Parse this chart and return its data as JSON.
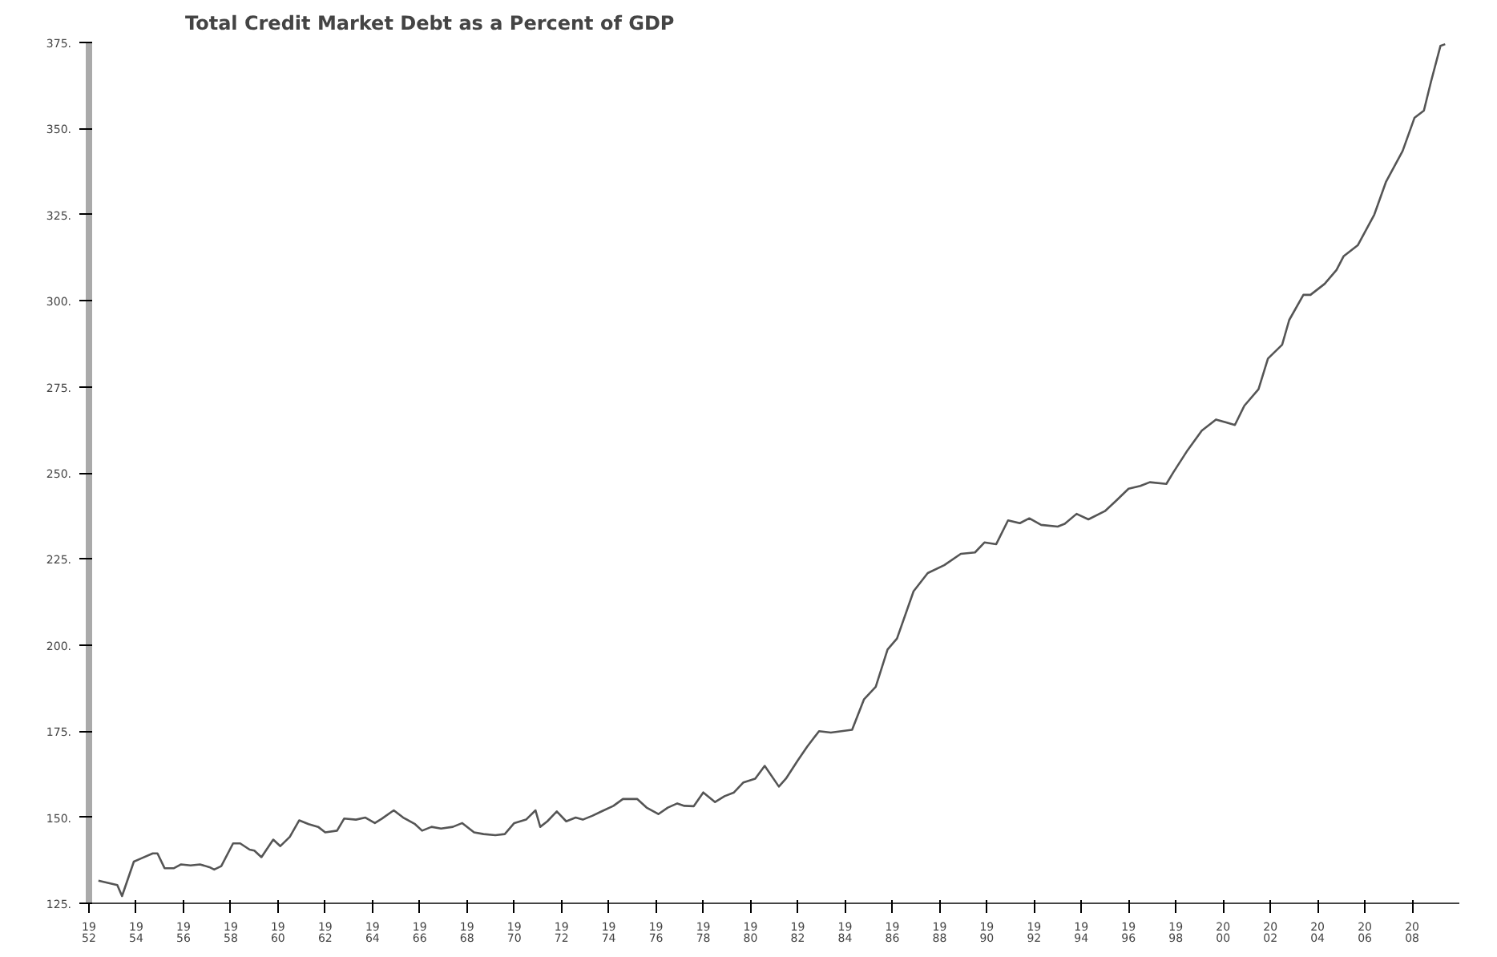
{
  "chart_data": {
    "type": "line",
    "title": "Total Credit Market Debt as a Percent of GDP",
    "x": [
      1952.4,
      1953.2,
      1953.4,
      1953.9,
      1954.2,
      1954.7,
      1954.9,
      1955.2,
      1955.6,
      1955.9,
      1956.3,
      1956.7,
      1957.1,
      1957.3,
      1957.6,
      1958.1,
      1958.4,
      1958.8,
      1959.0,
      1959.3,
      1959.8,
      1960.1,
      1960.5,
      1960.9,
      1961.3,
      1961.7,
      1962.0,
      1962.5,
      1962.8,
      1963.3,
      1963.7,
      1964.1,
      1964.4,
      1964.9,
      1965.3,
      1965.8,
      1966.1,
      1966.5,
      1966.9,
      1967.4,
      1967.8,
      1968.3,
      1968.7,
      1969.2,
      1969.6,
      1970.0,
      1970.5,
      1970.9,
      1971.1,
      1971.4,
      1971.8,
      1972.2,
      1972.6,
      1972.9,
      1973.3,
      1973.7,
      1974.2,
      1974.6,
      1975.2,
      1975.6,
      1976.1,
      1976.5,
      1976.9,
      1977.2,
      1977.6,
      1978.0,
      1978.5,
      1978.9,
      1979.3,
      1979.7,
      1980.2,
      1980.6,
      1981.2,
      1981.5,
      1982.0,
      1982.4,
      1982.9,
      1983.4,
      1984.3,
      1984.8,
      1985.3,
      1985.8,
      1986.2,
      1986.9,
      1987.5,
      1988.2,
      1988.9,
      1989.5,
      1989.9,
      1990.4,
      1990.9,
      1991.4,
      1991.8,
      1992.3,
      1993.0,
      1993.3,
      1993.8,
      1994.3,
      1995.0,
      1995.5,
      1996.0,
      1996.5,
      1996.9,
      1997.6,
      1997.9,
      1998.2,
      1998.5,
      1999.1,
      1999.7,
      2000.1,
      2000.5,
      2000.9,
      2001.5,
      2001.9,
      2002.5,
      2002.8,
      2003.4,
      2003.7,
      2004.3,
      2004.8,
      2005.1,
      2005.7,
      2006.4,
      2006.9,
      2007.6,
      2008.1,
      2008.5,
      2008.8,
      2009.2,
      2009.4
    ],
    "series": [
      {
        "color": "#555555",
        "values": [
          131.6,
          130.3,
          127.1,
          137.1,
          138.0,
          139.5,
          139.5,
          135.2,
          135.2,
          136.3,
          136.0,
          136.3,
          135.5,
          134.8,
          135.8,
          142.4,
          142.4,
          140.6,
          140.3,
          138.4,
          143.5,
          141.6,
          144.3,
          149.1,
          148.0,
          147.2,
          145.6,
          146.1,
          149.6,
          149.3,
          149.9,
          148.3,
          149.6,
          152.0,
          149.9,
          148.0,
          146.1,
          147.2,
          146.7,
          147.2,
          148.3,
          145.6,
          145.1,
          144.8,
          145.1,
          148.3,
          149.3,
          152.0,
          147.2,
          148.8,
          151.7,
          148.8,
          149.9,
          149.3,
          150.4,
          151.7,
          153.3,
          155.3,
          155.3,
          152.8,
          150.9,
          152.8,
          154.0,
          153.3,
          153.2,
          157.2,
          154.4,
          156.1,
          157.2,
          160.1,
          161.2,
          164.9,
          158.9,
          161.2,
          166.5,
          170.5,
          175.0,
          174.6,
          175.4,
          184.2,
          187.9,
          198.7,
          201.9,
          215.6,
          220.9,
          223.2,
          226.5,
          226.9,
          229.8,
          229.3,
          236.2,
          235.4,
          236.8,
          234.9,
          234.4,
          235.2,
          238.1,
          236.5,
          238.9,
          242.1,
          245.4,
          246.2,
          247.3,
          246.8,
          250.2,
          253.4,
          256.6,
          262.3,
          265.5,
          264.7,
          263.9,
          269.5,
          274.3,
          283.2,
          287.2,
          294.4,
          301.7,
          301.7,
          304.9,
          308.9,
          312.9,
          316.1,
          325.0,
          334.6,
          343.5,
          353.1,
          355.2,
          363.6,
          374.0,
          374.5
        ]
      }
    ],
    "xlim": [
      1952,
      2010
    ],
    "ylim": [
      125,
      375
    ],
    "xticks": [
      1952,
      1954,
      1956,
      1958,
      1960,
      1962,
      1964,
      1966,
      1968,
      1970,
      1972,
      1974,
      1976,
      1978,
      1980,
      1982,
      1984,
      1986,
      1988,
      1990,
      1992,
      1994,
      1996,
      1998,
      2000,
      2002,
      2004,
      2006,
      2008
    ],
    "yticks": [
      {
        "value": 125,
        "label": "125."
      },
      {
        "value": 150,
        "label": "150."
      },
      {
        "value": 175,
        "label": "175."
      },
      {
        "value": 200,
        "label": "200."
      },
      {
        "value": 225,
        "label": "225."
      },
      {
        "value": 250,
        "label": "250."
      },
      {
        "value": 275,
        "label": "275."
      },
      {
        "value": 300,
        "label": "300."
      },
      {
        "value": 325,
        "label": "325."
      },
      {
        "value": 350,
        "label": "350."
      },
      {
        "value": 375,
        "label": "375."
      }
    ],
    "grid": false
  }
}
